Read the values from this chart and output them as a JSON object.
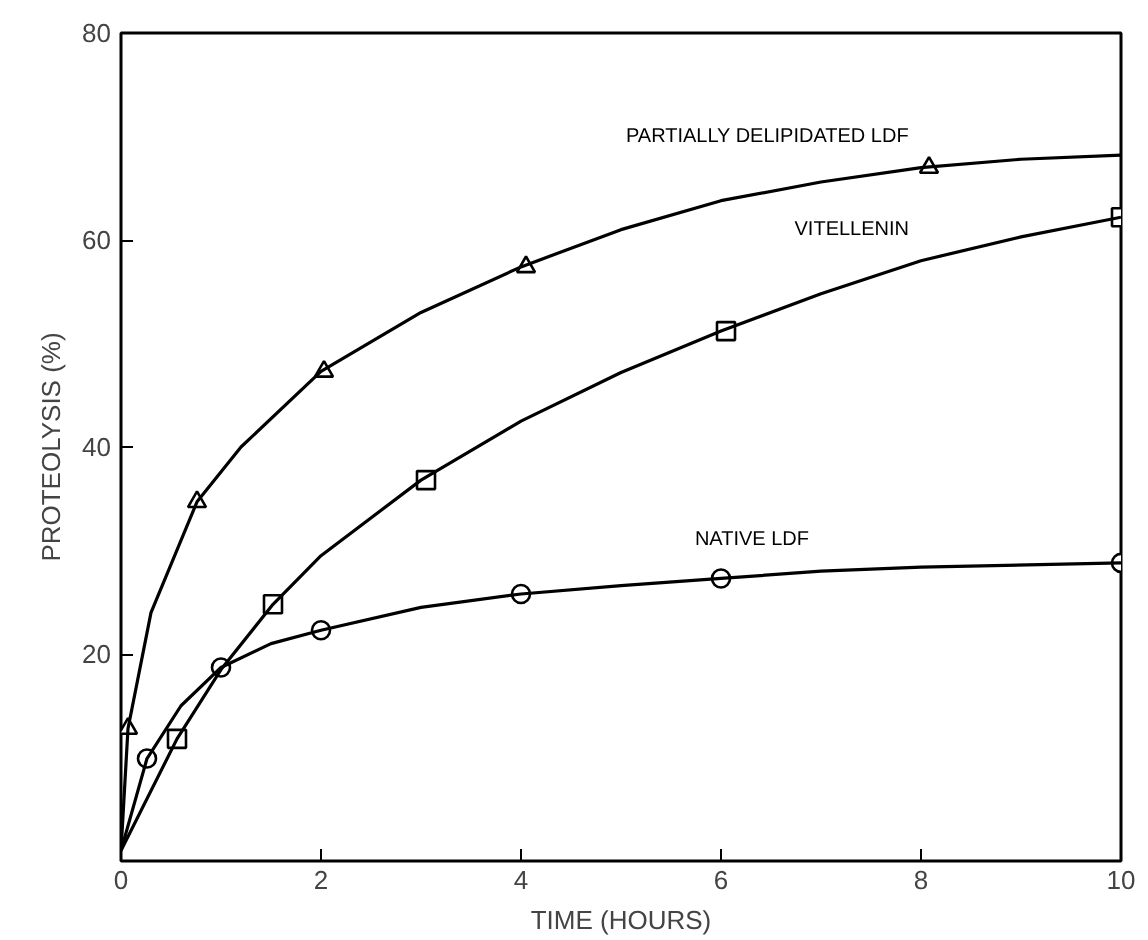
{
  "chart_data": {
    "type": "scatter",
    "xlabel": "TIME (HOURS)",
    "ylabel": "PROTEOLYSIS (%)",
    "xlim": [
      0,
      10
    ],
    "ylim": [
      0,
      80
    ],
    "xticks": [
      0,
      2,
      4,
      6,
      8,
      10
    ],
    "yticks": [
      {
        "value": 0,
        "label": null
      },
      20,
      40,
      60,
      80
    ],
    "grid": false,
    "series": [
      {
        "marker": "triangle",
        "color": "#000000",
        "x": [
          0.07,
          0.76,
          2.03,
          4.05,
          8.08
        ],
        "values": [
          12.8,
          34.7,
          47.3,
          57.4,
          67.0
        ]
      },
      {
        "marker": "square",
        "color": "#000000",
        "x": [
          0.56,
          1.52,
          3.05,
          6.05,
          10
        ],
        "values": [
          11.8,
          24.8,
          36.8,
          51.2,
          62.2
        ]
      },
      {
        "marker": "circle",
        "color": "#000000",
        "x": [
          0.26,
          1.0,
          2.0,
          4.0,
          6.0,
          10
        ],
        "values": [
          9.9,
          18.7,
          22.3,
          25.8,
          27.3,
          28.8
        ]
      },
      {
        "type": "line",
        "name": "PARTIALLY DELIPIDATED LDF",
        "line_style": "solid",
        "color": "#000000",
        "x": [
          0,
          0.07,
          0.3,
          0.76,
          1.2,
          2,
          3,
          4,
          5,
          6,
          7,
          8,
          9,
          10
        ],
        "values": [
          1,
          12.8,
          24,
          34.7,
          40,
          47.3,
          53,
          57.4,
          61,
          63.8,
          65.6,
          67,
          67.8,
          68.2
        ]
      },
      {
        "type": "line",
        "name": "VITELLENIN",
        "line_style": "solid",
        "color": "#000000",
        "x": [
          0,
          0.56,
          1,
          1.52,
          2,
          3,
          4,
          5,
          6,
          7,
          8,
          9,
          10
        ],
        "values": [
          1,
          11.8,
          18.5,
          24.8,
          29.5,
          36.8,
          42.5,
          47.2,
          51.2,
          54.8,
          58,
          60.3,
          62.2
        ]
      },
      {
        "type": "line",
        "name": "NATIVE LDF",
        "line_style": "solid",
        "color": "#000000",
        "x": [
          0,
          0.26,
          0.6,
          1,
          1.5,
          2,
          3,
          4,
          5,
          6,
          7,
          8,
          10
        ],
        "values": [
          1,
          9.9,
          15,
          18.7,
          21,
          22.3,
          24.5,
          25.8,
          26.6,
          27.3,
          28,
          28.4,
          28.8
        ]
      }
    ]
  }
}
